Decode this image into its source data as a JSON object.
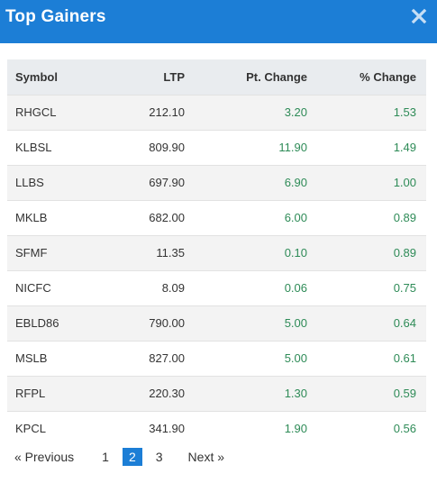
{
  "modal": {
    "title": "Top Gainers",
    "close_icon": "close-icon",
    "accent_color": "#1c7ed6"
  },
  "table": {
    "headers": [
      "Symbol",
      "LTP",
      "Pt. Change",
      "% Change"
    ],
    "rows": [
      {
        "symbol": "RHGCL",
        "ltp": "212.10",
        "pt_change": "3.20",
        "pct_change": "1.53"
      },
      {
        "symbol": "KLBSL",
        "ltp": "809.90",
        "pt_change": "11.90",
        "pct_change": "1.49"
      },
      {
        "symbol": "LLBS",
        "ltp": "697.90",
        "pt_change": "6.90",
        "pct_change": "1.00"
      },
      {
        "symbol": "MKLB",
        "ltp": "682.00",
        "pt_change": "6.00",
        "pct_change": "0.89"
      },
      {
        "symbol": "SFMF",
        "ltp": "11.35",
        "pt_change": "0.10",
        "pct_change": "0.89"
      },
      {
        "symbol": "NICFC",
        "ltp": "8.09",
        "pt_change": "0.06",
        "pct_change": "0.75"
      },
      {
        "symbol": "EBLD86",
        "ltp": "790.00",
        "pt_change": "5.00",
        "pct_change": "0.64"
      },
      {
        "symbol": "MSLB",
        "ltp": "827.00",
        "pt_change": "5.00",
        "pct_change": "0.61"
      },
      {
        "symbol": "RFPL",
        "ltp": "220.30",
        "pt_change": "1.30",
        "pct_change": "0.59"
      },
      {
        "symbol": "KPCL",
        "ltp": "341.90",
        "pt_change": "1.90",
        "pct_change": "0.56"
      }
    ],
    "positive_color": "#2e8b57"
  },
  "pagination": {
    "previous_label": "«  Previous",
    "next_label": "Next  »",
    "pages": [
      "1",
      "2",
      "3"
    ],
    "current_page": "2"
  }
}
